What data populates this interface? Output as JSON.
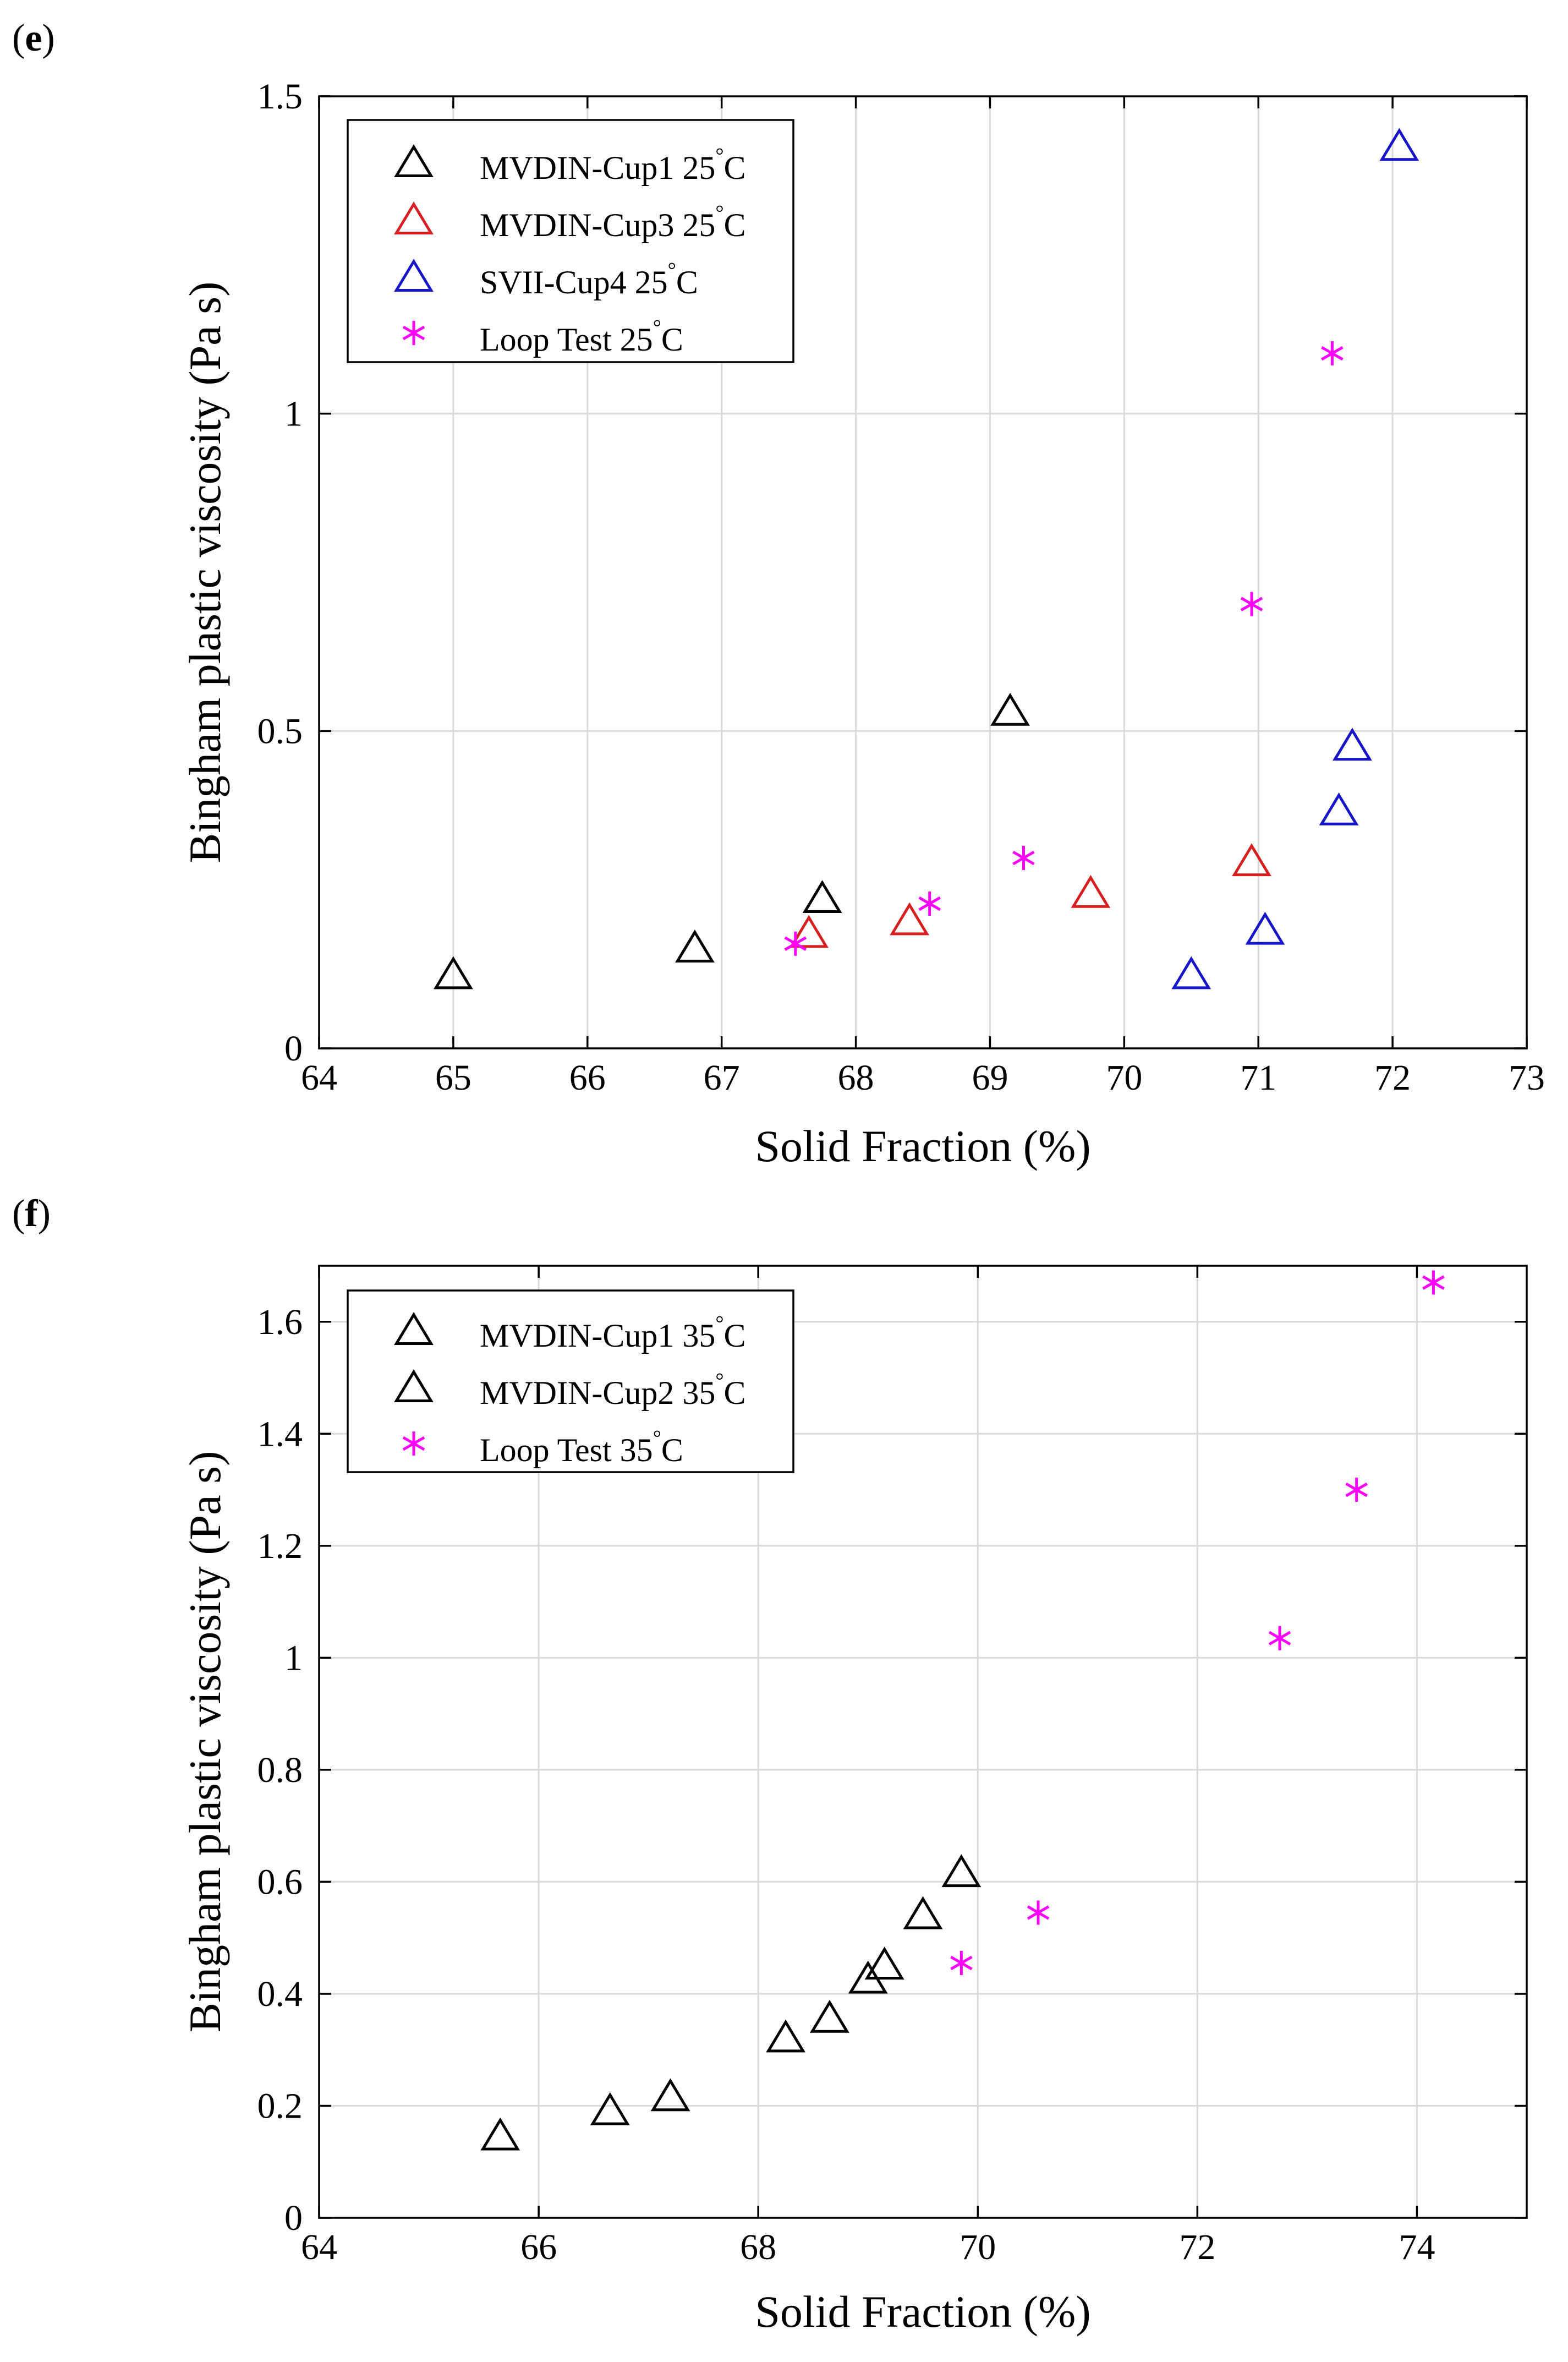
{
  "colors": {
    "black": "#000000",
    "red": "#d62020",
    "blue": "#1616c8",
    "magenta": "#ff00ff",
    "grid": "#dadada"
  },
  "chart_data": [
    {
      "panel_label": "e",
      "type": "scatter",
      "xlabel": "Solid Fraction (%)",
      "ylabel": "Bingham plastic viscosity (Pa s)",
      "xlim": [
        64,
        73
      ],
      "ylim": [
        0,
        1.5
      ],
      "xticks": [
        64,
        65,
        66,
        67,
        68,
        69,
        70,
        71,
        72,
        73
      ],
      "yticks": [
        0,
        0.5,
        1,
        1.5
      ],
      "xtick_labels": [
        "64",
        "65",
        "66",
        "67",
        "68",
        "69",
        "70",
        "71",
        "72",
        "73"
      ],
      "ytick_labels": [
        "0",
        "0.5",
        "1",
        "1.5"
      ],
      "grid": true,
      "legend_position": "top-left",
      "series": [
        {
          "name": "MVDIN-Cup1 25",
          "unit": "C",
          "marker": "triangle",
          "color": "#000000",
          "x": [
            65.0,
            66.8,
            67.75,
            69.15
          ],
          "y": [
            0.115,
            0.157,
            0.235,
            0.53
          ]
        },
        {
          "name": "MVDIN-Cup3 25",
          "unit": "C",
          "marker": "triangle",
          "color": "#d62020",
          "x": [
            67.65,
            68.4,
            69.75,
            70.95
          ],
          "y": [
            0.18,
            0.2,
            0.243,
            0.293
          ]
        },
        {
          "name": "SVII-Cup4 25",
          "unit": "C",
          "marker": "triangle",
          "color": "#1616c8",
          "x": [
            70.5,
            71.05,
            71.6,
            71.7,
            72.05
          ],
          "y": [
            0.115,
            0.185,
            0.373,
            0.475,
            1.42
          ]
        },
        {
          "name": "Loop Test 25",
          "unit": "C",
          "marker": "asterisk",
          "color": "#ff00ff",
          "x": [
            67.55,
            68.55,
            69.25,
            70.95,
            71.55
          ],
          "y": [
            0.165,
            0.228,
            0.3,
            0.7,
            1.095
          ]
        }
      ]
    },
    {
      "panel_label": "f",
      "type": "scatter",
      "xlabel": "Solid Fraction (%)",
      "ylabel": "Bingham plastic viscosity (Pa s)",
      "xlim": [
        64,
        75
      ],
      "ylim": [
        0,
        1.7
      ],
      "xticks": [
        64,
        66,
        68,
        70,
        72,
        74
      ],
      "yticks": [
        0,
        0.2,
        0.4,
        0.6,
        0.8,
        1.0,
        1.2,
        1.4,
        1.6
      ],
      "xtick_labels": [
        "64",
        "66",
        "68",
        "70",
        "72",
        "74"
      ],
      "ytick_labels": [
        "0",
        "0.2",
        "0.4",
        "0.6",
        "0.8",
        "1",
        "1.2",
        "1.4",
        "1.6"
      ],
      "grid": true,
      "legend_position": "top-left",
      "series": [
        {
          "name": "MVDIN-Cup1 35",
          "unit": "C",
          "marker": "triangle",
          "color": "#000000",
          "x": [
            65.65,
            66.65,
            67.2,
            68.25,
            68.65,
            69.0,
            69.15
          ],
          "y": [
            0.145,
            0.19,
            0.215,
            0.32,
            0.355,
            0.425,
            0.45
          ]
        },
        {
          "name": "MVDIN-Cup2 35",
          "unit": "C",
          "marker": "triangle",
          "color": "#000000",
          "x": [
            69.5,
            69.85
          ],
          "y": [
            0.54,
            0.615
          ]
        },
        {
          "name": "Loop Test 35",
          "unit": "C",
          "marker": "asterisk",
          "color": "#ff00ff",
          "x": [
            69.85,
            70.55,
            72.75,
            73.45,
            74.15
          ],
          "y": [
            0.455,
            0.545,
            1.035,
            1.3,
            1.67
          ]
        }
      ]
    }
  ]
}
